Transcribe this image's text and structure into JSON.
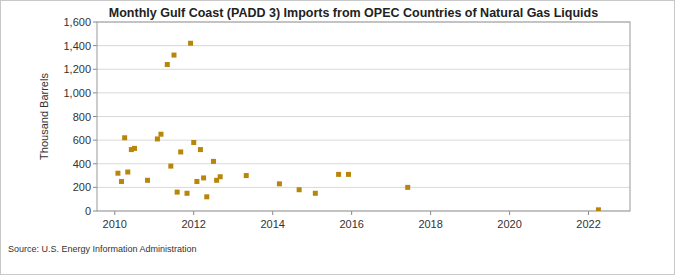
{
  "chart_data": {
    "type": "scatter",
    "title": "Monthly Gulf Coast (PADD 3) Imports from OPEC Countries of Natural Gas Liquids",
    "y_label": "Thousand Barrels",
    "annotations": [
      "Source: U.S. Energy Information Administration"
    ],
    "x": [
      2010.08,
      2010.17,
      2010.25,
      2010.33,
      2010.42,
      2010.5,
      2010.83,
      2011.08,
      2011.17,
      2011.33,
      2011.42,
      2011.5,
      2011.58,
      2011.67,
      2011.83,
      2011.92,
      2012.0,
      2012.08,
      2012.17,
      2012.25,
      2012.33,
      2012.5,
      2012.58,
      2012.67,
      2013.33,
      2014.17,
      2014.67,
      2015.08,
      2015.67,
      2015.92,
      2017.42,
      2022.25
    ],
    "values": [
      320,
      250,
      620,
      330,
      520,
      530,
      260,
      610,
      650,
      1240,
      380,
      1320,
      160,
      500,
      150,
      1420,
      580,
      250,
      520,
      280,
      120,
      420,
      260,
      290,
      300,
      230,
      180,
      150,
      310,
      310,
      200,
      10
    ],
    "color": "#b8860b",
    "marker": "square",
    "xlim": [
      2009.55,
      2023.05
    ],
    "xticks": [
      2010,
      2012,
      2014,
      2016,
      2018,
      2020,
      2022
    ],
    "ylim": [
      0,
      1600
    ],
    "yticks": [
      0,
      200,
      400,
      600,
      800,
      {
        "value": 1000,
        "label": "1,000"
      },
      {
        "value": 1200,
        "label": "1,200"
      },
      {
        "value": 1400,
        "label": "1,400"
      },
      {
        "value": 1600,
        "label": "1,600"
      }
    ],
    "grid": true
  }
}
